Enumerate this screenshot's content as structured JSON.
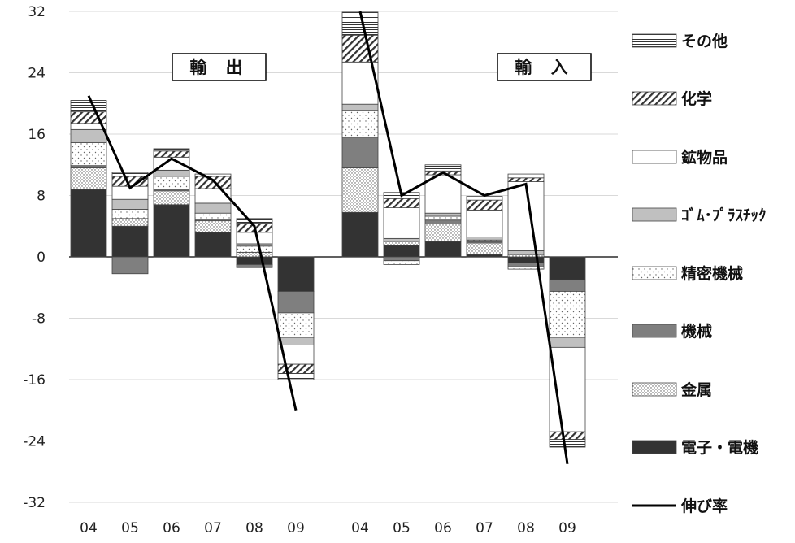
{
  "colors": {
    "electronics": "#333333",
    "metals": "#f2f2f2",
    "machinery": "#7f7f7f",
    "precision": "#ffffff",
    "rubber_plastic": "#c0c0c0",
    "minerals": "#ffffff",
    "chemicals": "#ffffff",
    "other": "#ffffff",
    "line": "#000000"
  },
  "chart_data": {
    "type": "bar",
    "stacked": true,
    "ylim": [
      -32,
      32
    ],
    "yticks": [
      "32",
      "24",
      "16",
      "8",
      "0",
      "-8",
      "-16",
      "-24",
      "-32"
    ],
    "panels": [
      {
        "label": "輸 出",
        "categories": [
          "04",
          "05",
          "06",
          "07",
          "08",
          "09"
        ],
        "series": {
          "electronics": [
            8.8,
            4.0,
            6.8,
            3.2,
            -1.0,
            -4.5
          ],
          "metals": [
            2.8,
            1.0,
            1.8,
            1.5,
            0.6,
            0
          ],
          "machinery": [
            0.3,
            -2.2,
            0.2,
            0.2,
            -0.4,
            -2.8
          ],
          "precision": [
            3.0,
            1.2,
            1.7,
            0.8,
            0.8,
            -3.2
          ],
          "rubber_plastic": [
            1.7,
            1.3,
            0.8,
            1.3,
            0.3,
            -1.0
          ],
          "minerals": [
            0.8,
            1.7,
            1.7,
            1.9,
            1.5,
            -2.5
          ],
          "chemicals": [
            1.5,
            1.3,
            0.8,
            1.6,
            1.2,
            -1.2
          ],
          "other": [
            1.5,
            0.5,
            0.3,
            0.3,
            0.6,
            -0.8
          ]
        },
        "growth": [
          21.0,
          9.0,
          12.8,
          10.0,
          4.0,
          -20.0
        ]
      },
      {
        "label": "輸 入",
        "categories": [
          "04",
          "05",
          "06",
          "07",
          "08",
          "09"
        ],
        "series": {
          "electronics": [
            5.8,
            1.5,
            2.0,
            0.3,
            -0.8,
            -3.0
          ],
          "metals": [
            5.8,
            0.5,
            2.3,
            1.5,
            0.3,
            0
          ],
          "machinery": [
            4.0,
            -0.5,
            0.5,
            0.2,
            -0.5,
            -1.5
          ],
          "precision": [
            3.5,
            -0.5,
            0.5,
            0.2,
            -0.3,
            -6.0
          ],
          "rubber_plastic": [
            0.8,
            0.4,
            0.4,
            0.4,
            0.5,
            -1.3
          ],
          "minerals": [
            5.5,
            4.0,
            5.0,
            3.5,
            9.0,
            -11.0
          ],
          "chemicals": [
            3.5,
            1.2,
            0.5,
            1.3,
            0.5,
            -1.0
          ],
          "other": [
            3.0,
            0.8,
            0.8,
            0.5,
            0.5,
            -1.0
          ]
        },
        "growth": [
          32.0,
          8.0,
          11.0,
          8.0,
          9.5,
          -27.0
        ]
      }
    ],
    "legend": [
      {
        "key": "other",
        "label": "その他"
      },
      {
        "key": "chemicals",
        "label": "化学"
      },
      {
        "key": "minerals",
        "label": "鉱物品"
      },
      {
        "key": "rubber_plastic",
        "label": "ｺﾞﾑ･ﾌﾟﾗｽﾁｯｸ"
      },
      {
        "key": "precision",
        "label": "精密機械"
      },
      {
        "key": "machinery",
        "label": "機械"
      },
      {
        "key": "metals",
        "label": "金属"
      },
      {
        "key": "electronics",
        "label": "電子・電機"
      },
      {
        "key": "growth",
        "label": "伸び率"
      }
    ]
  }
}
